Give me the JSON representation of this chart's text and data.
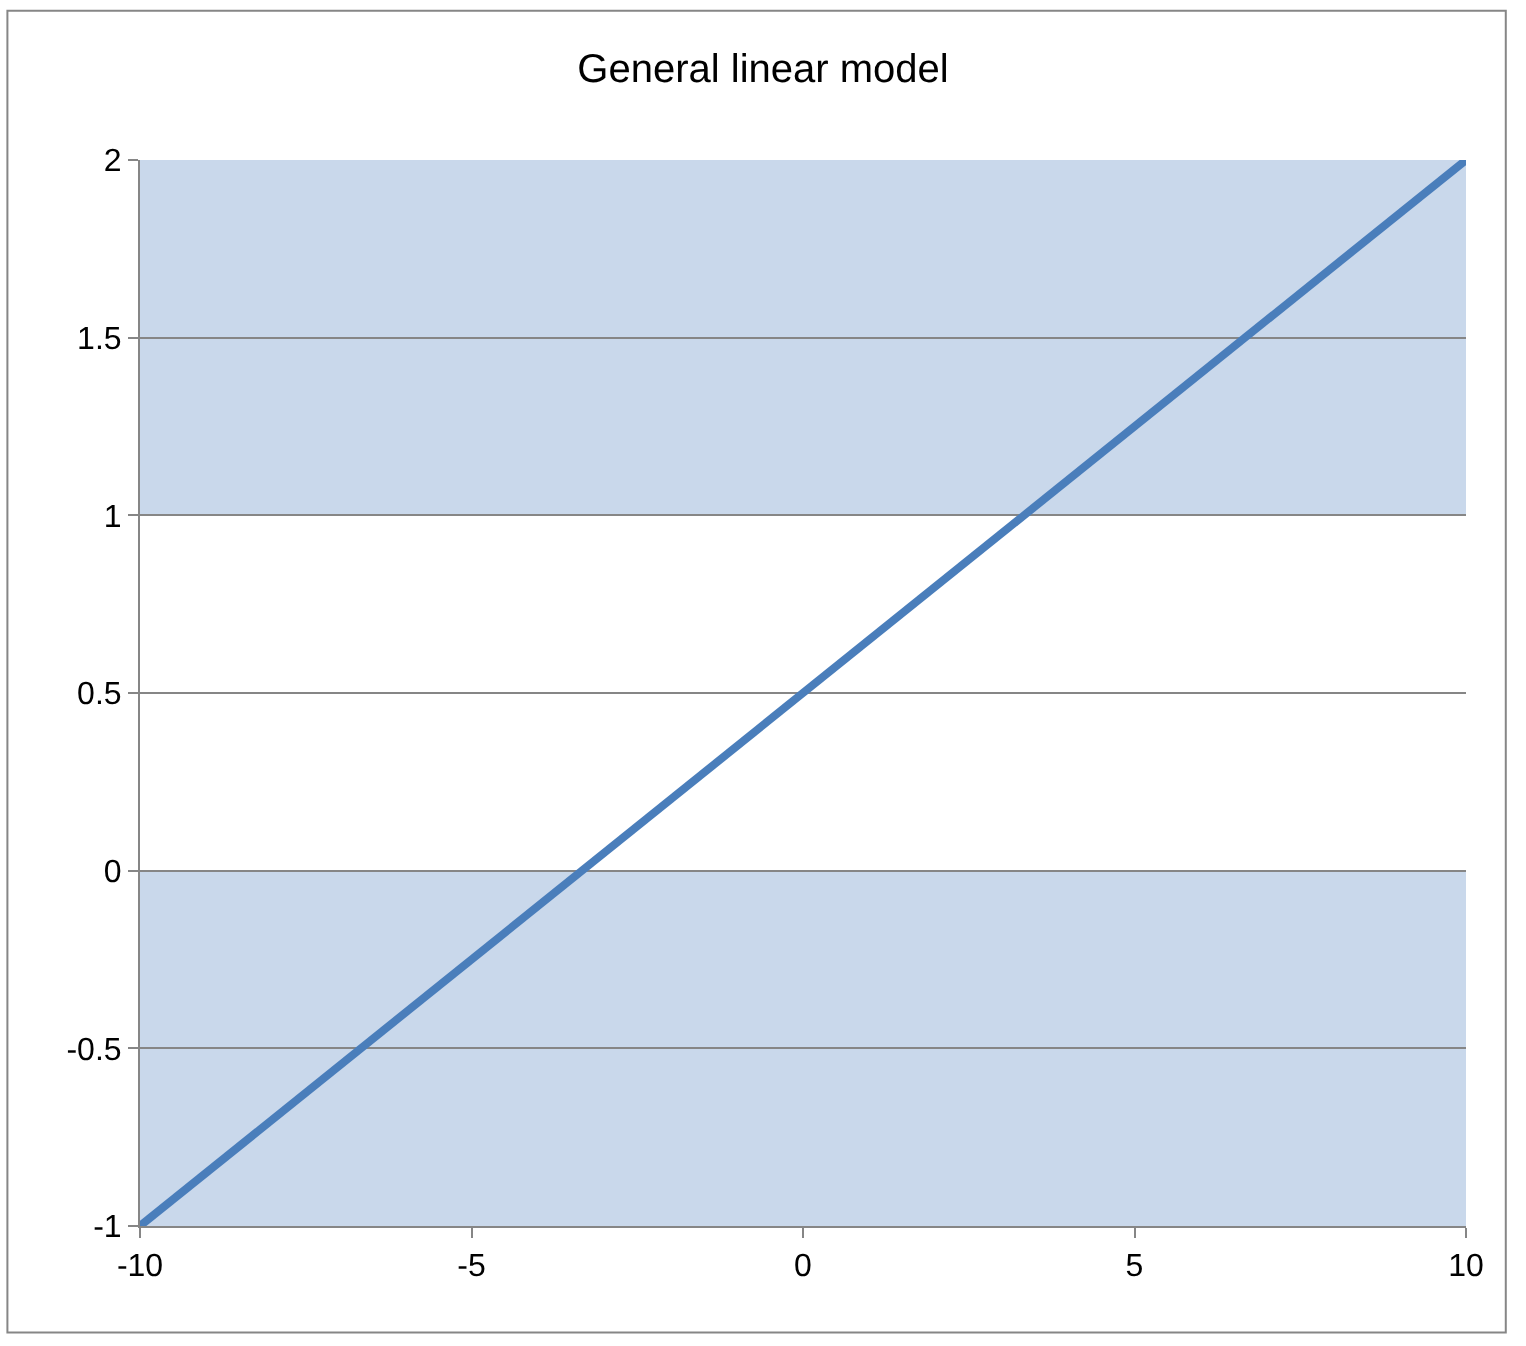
{
  "chart_data": {
    "type": "line",
    "title": "General linear model",
    "x": [
      -10,
      10
    ],
    "series": [
      {
        "color": "#4a7ebb",
        "values": [
          -1,
          2
        ]
      }
    ],
    "xlim": [
      -10,
      10
    ],
    "xticks": [
      -10,
      -5,
      0,
      5,
      10
    ],
    "ylim": [
      -1,
      2
    ],
    "yticks": [
      -1,
      -0.5,
      0,
      0.5,
      1,
      1.5,
      2
    ],
    "bands": [
      {
        "axis": "y",
        "from": 1,
        "to": 2,
        "color": "#c9d8eb"
      },
      {
        "axis": "y",
        "from": -1,
        "to": 0,
        "color": "#c9d8eb"
      }
    ],
    "grid": "y",
    "marker": "none",
    "line_style": "solid"
  }
}
